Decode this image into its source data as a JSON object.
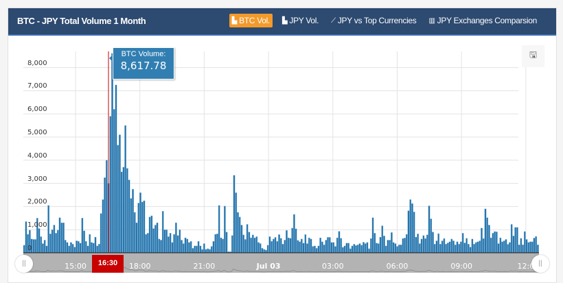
{
  "header": {
    "title": "BTC - JPY Total Volume 1 Month",
    "tabs": [
      {
        "label": "BTC Vol.",
        "icon": "area-chart-icon",
        "active": true
      },
      {
        "label": "JPY Vol.",
        "icon": "area-chart-icon"
      },
      {
        "label": "JPY vs Top Currencies",
        "icon": "line-chart-icon"
      },
      {
        "label": "JPY Exchanges Comparsion",
        "icon": "bar-chart-icon"
      }
    ]
  },
  "tooltip": {
    "label": "BTC Volume:",
    "value": "8,617.78"
  },
  "save_icon": "floppy-disk-icon",
  "navigator": {
    "current_label": "16:30"
  },
  "chart_data": {
    "type": "bar",
    "series": [
      {
        "values": [
          330,
          1350,
          800,
          980,
          600,
          580,
          580,
          1500,
          1050,
          700,
          400,
          550,
          300,
          2050,
          820,
          1000,
          1200,
          850,
          980,
          1520,
          1300,
          1300,
          550,
          450,
          300,
          450,
          380,
          250,
          520,
          500,
          420,
          1500,
          950,
          500,
          300,
          800,
          450,
          420,
          680,
          300,
          380,
          1700,
          2300,
          3250,
          4000,
          3000,
          5900,
          8617.78,
          6200,
          7250,
          4650,
          5100,
          3500,
          3700,
          5500,
          3650,
          3150,
          2350,
          2750,
          1750,
          1300,
          2150,
          2600,
          2200,
          2250,
          800,
          850,
          1550,
          1600,
          1050,
          1200,
          1300,
          600,
          550,
          1800,
          1000,
          1000,
          700,
          850,
          450,
          800,
          1300,
          750,
          1000,
          550,
          400,
          650,
          600,
          450,
          500,
          200,
          300,
          300,
          500,
          300,
          150,
          400,
          150,
          180,
          150,
          280,
          500,
          800,
          820,
          2050,
          650,
          600,
          2020,
          900,
          50,
          50,
          750,
          3350,
          2600,
          1750,
          1550,
          1200,
          780,
          580,
          1230,
          900,
          650,
          780,
          650,
          700,
          450,
          400,
          200,
          150,
          120,
          330,
          700,
          500,
          600,
          670,
          500,
          790,
          630,
          380,
          550,
          970,
          650,
          630,
          1070,
          1660,
          1040,
          540,
          480,
          600,
          420,
          790,
          400,
          650,
          600,
          280,
          300,
          200,
          300,
          650,
          480,
          350,
          550,
          670,
          670,
          450,
          450,
          280,
          650,
          930,
          630,
          240,
          300,
          420,
          420,
          180,
          300,
          380,
          320,
          350,
          400,
          330,
          460,
          400,
          450,
          180,
          620,
          1520,
          850,
          420,
          400,
          680,
          1170,
          730,
          300,
          550,
          550,
          880,
          450,
          400,
          280,
          350,
          350,
          620,
          640,
          800,
          1820,
          2300,
          2130,
          1770,
          680,
          820,
          400,
          600,
          750,
          620,
          780,
          2030,
          1470,
          900,
          380,
          520,
          830,
          380,
          520,
          620,
          380,
          430,
          480,
          600,
          520,
          350,
          480,
          380,
          480,
          850,
          430,
          630,
          380,
          250,
          600,
          380,
          450,
          480,
          520,
          1070,
          620,
          1900,
          1520,
          1200,
          650,
          850,
          920,
          910,
          400,
          650,
          480,
          520,
          580,
          370,
          450,
          1230,
          730,
          1100,
          1100,
          350,
          630,
          350,
          920,
          580,
          450,
          480,
          480,
          640,
          710,
          350
        ]
      }
    ],
    "yticks": [
      "0",
      "1,000",
      "2,000",
      "3,000",
      "4,000",
      "5,000",
      "6,000",
      "7,000",
      "8,000"
    ],
    "ylim": [
      0,
      8617.78
    ],
    "xticks": [
      "15:00",
      "18:00",
      "21:00",
      "Jul 03",
      "03:00",
      "06:00",
      "09:00",
      "12:0"
    ],
    "grid": true,
    "colors": {
      "bar": "#2271a8",
      "header": "#2d4a70",
      "active_tab": "#f39a2b",
      "crosshair": "#c80000"
    }
  }
}
